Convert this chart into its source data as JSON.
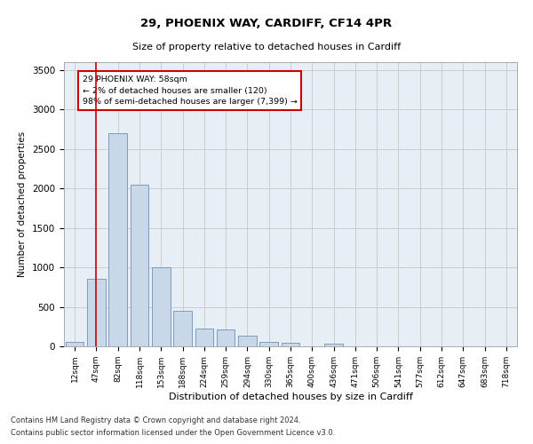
{
  "title1": "29, PHOENIX WAY, CARDIFF, CF14 4PR",
  "title2": "Size of property relative to detached houses in Cardiff",
  "xlabel": "Distribution of detached houses by size in Cardiff",
  "ylabel": "Number of detached properties",
  "bar_color": "#c8d8e8",
  "bar_edge_color": "#7090b8",
  "categories": [
    "12sqm",
    "47sqm",
    "82sqm",
    "118sqm",
    "153sqm",
    "188sqm",
    "224sqm",
    "259sqm",
    "294sqm",
    "330sqm",
    "365sqm",
    "400sqm",
    "436sqm",
    "471sqm",
    "506sqm",
    "541sqm",
    "577sqm",
    "612sqm",
    "647sqm",
    "683sqm",
    "718sqm"
  ],
  "values": [
    60,
    850,
    2700,
    2050,
    1000,
    450,
    220,
    215,
    135,
    60,
    50,
    0,
    30,
    0,
    0,
    0,
    0,
    0,
    0,
    0,
    0
  ],
  "ylim": [
    0,
    3600
  ],
  "yticks": [
    0,
    500,
    1000,
    1500,
    2000,
    2500,
    3000,
    3500
  ],
  "vline_x": 1.0,
  "vline_color": "#cc0000",
  "annotation_text": "29 PHOENIX WAY: 58sqm\n← 2% of detached houses are smaller (120)\n98% of semi-detached houses are larger (7,399) →",
  "annotation_box_color": "#ffffff",
  "annotation_box_edge": "#cc0000",
  "grid_color": "#cccccc",
  "background_color": "#e8eef5",
  "footnote1": "Contains HM Land Registry data © Crown copyright and database right 2024.",
  "footnote2": "Contains public sector information licensed under the Open Government Licence v3.0."
}
